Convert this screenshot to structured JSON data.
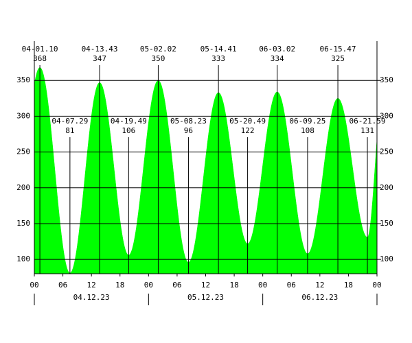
{
  "chart_data": {
    "type": "area",
    "color": "#00ff00",
    "extremes": [
      {
        "label": "04-01.10",
        "value": 368
      },
      {
        "label": "04-07.29",
        "value": 81
      },
      {
        "label": "04-13.43",
        "value": 347
      },
      {
        "label": "04-19.49",
        "value": 106
      },
      {
        "label": "05-02.02",
        "value": 350
      },
      {
        "label": "05-08.23",
        "value": 96
      },
      {
        "label": "05-14.41",
        "value": 333
      },
      {
        "label": "05-20.49",
        "value": 122
      },
      {
        "label": "06-03.02",
        "value": 334
      },
      {
        "label": "06-09.25",
        "value": 108
      },
      {
        "label": "06-15.47",
        "value": 325
      },
      {
        "label": "06-21.59",
        "value": 131
      }
    ],
    "dates": [
      "04.12.23",
      "05.12.23",
      "06.12.23"
    ],
    "xlim": [
      0,
      72
    ],
    "xticks": [
      {
        "value": 0,
        "label": "00"
      },
      {
        "value": 6,
        "label": "06"
      },
      {
        "value": 12,
        "label": "12"
      },
      {
        "value": 18,
        "label": "18"
      },
      {
        "value": 24,
        "label": "00"
      },
      {
        "value": 30,
        "label": "06"
      },
      {
        "value": 36,
        "label": "12"
      },
      {
        "value": 42,
        "label": "18"
      },
      {
        "value": 48,
        "label": "00"
      },
      {
        "value": 54,
        "label": "06"
      },
      {
        "value": 60,
        "label": "12"
      },
      {
        "value": 66,
        "label": "18"
      },
      {
        "value": 72,
        "label": "00"
      }
    ],
    "ylim": [
      80,
      400
    ],
    "yticks": [
      100,
      150,
      200,
      250,
      300,
      350
    ],
    "grid": true
  }
}
